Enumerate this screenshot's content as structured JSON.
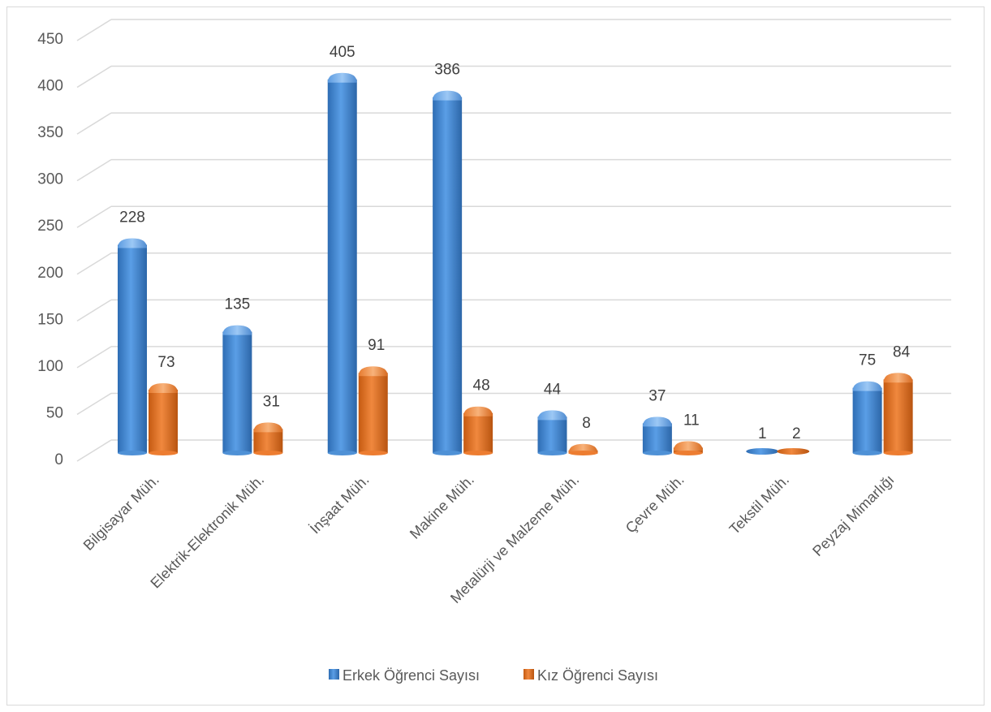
{
  "chart_data": {
    "type": "bar",
    "categories": [
      "Bilgisayar  Müh.",
      "Elektrik-Elektronik Müh.",
      "İnşaat Müh.",
      "Makine Müh.",
      "Metalürji ve Malzeme Müh.",
      "Çevre Müh.",
      "Tekstil Müh.",
      "Peyzaj Mimarlığı"
    ],
    "series": [
      {
        "name": "Erkek Öğrenci Sayısı",
        "values": [
          228,
          135,
          405,
          386,
          44,
          37,
          1,
          75
        ],
        "color": "#4f91d6"
      },
      {
        "name": "Kız Öğrenci Sayısı",
        "values": [
          73,
          31,
          91,
          48,
          8,
          11,
          2,
          84
        ],
        "color": "#ed7d31"
      }
    ],
    "y_ticks": [
      "0",
      "50",
      "100",
      "150",
      "200",
      "250",
      "300",
      "350",
      "400",
      "450"
    ],
    "ylim": [
      0,
      450
    ],
    "grid": true,
    "legend": "bottom"
  }
}
